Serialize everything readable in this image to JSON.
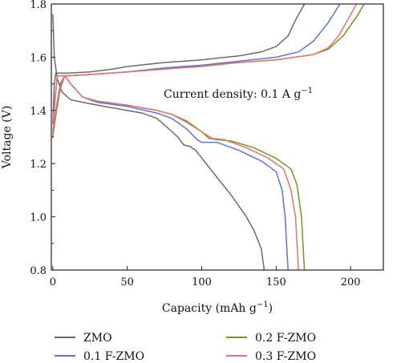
{
  "chart_data": {
    "type": "line",
    "title": "",
    "xlabel": "Capacity (mAh g",
    "xlabel_sup": "−1",
    "xlabel_tail": ")",
    "ylabel": "Voltage (V)",
    "xlim": [
      -1,
      222
    ],
    "ylim": [
      0.8,
      1.8
    ],
    "x_ticks": [
      "0",
      "50",
      "100",
      "150",
      "200"
    ],
    "y_ticks": [
      "0.8",
      "1.0",
      "1.2",
      "1.4",
      "1.6",
      "1.8"
    ],
    "annotation": {
      "text": "Current density: 0.1 A g",
      "sup": "−1"
    },
    "grid": false,
    "legend_position": "bottom",
    "series": [
      {
        "name": "ZMO",
        "color": "#6b6b6b",
        "discharge": [
          [
            0,
            1.76
          ],
          [
            1,
            1.6
          ],
          [
            3,
            1.52
          ],
          [
            6,
            1.47
          ],
          [
            12,
            1.44
          ],
          [
            25,
            1.425
          ],
          [
            40,
            1.41
          ],
          [
            60,
            1.39
          ],
          [
            70,
            1.37
          ],
          [
            78,
            1.33
          ],
          [
            84,
            1.3
          ],
          [
            88,
            1.27
          ],
          [
            92,
            1.265
          ],
          [
            96,
            1.25
          ],
          [
            110,
            1.15
          ],
          [
            120,
            1.08
          ],
          [
            130,
            1.0
          ],
          [
            135,
            0.95
          ],
          [
            140,
            0.88
          ],
          [
            142,
            0.8
          ]
        ],
        "charge": [
          [
            0,
            1.35
          ],
          [
            1,
            1.5
          ],
          [
            2,
            1.54
          ],
          [
            5,
            1.54
          ],
          [
            10,
            1.54
          ],
          [
            25,
            1.545
          ],
          [
            40,
            1.555
          ],
          [
            50,
            1.565
          ],
          [
            75,
            1.58
          ],
          [
            100,
            1.59
          ],
          [
            125,
            1.605
          ],
          [
            140,
            1.62
          ],
          [
            150,
            1.64
          ],
          [
            158,
            1.68
          ],
          [
            163,
            1.74
          ],
          [
            170,
            1.81
          ]
        ]
      },
      {
        "name": "0.2 F-ZMO",
        "color": "#6f9a1f",
        "discharge": [
          [
            0,
            1.3
          ],
          [
            2,
            1.38
          ],
          [
            5,
            1.48
          ],
          [
            8,
            1.53
          ],
          [
            12,
            1.5
          ],
          [
            20,
            1.45
          ],
          [
            30,
            1.435
          ],
          [
            50,
            1.42
          ],
          [
            70,
            1.4
          ],
          [
            80,
            1.385
          ],
          [
            90,
            1.36
          ],
          [
            100,
            1.32
          ],
          [
            105,
            1.295
          ],
          [
            110,
            1.29
          ],
          [
            120,
            1.285
          ],
          [
            135,
            1.26
          ],
          [
            150,
            1.22
          ],
          [
            160,
            1.18
          ],
          [
            164,
            1.12
          ],
          [
            167,
            1.0
          ],
          [
            168,
            0.9
          ],
          [
            169,
            0.8
          ]
        ],
        "charge": [
          [
            0,
            1.35
          ],
          [
            3,
            1.53
          ],
          [
            10,
            1.53
          ],
          [
            25,
            1.535
          ],
          [
            50,
            1.545
          ],
          [
            75,
            1.555
          ],
          [
            100,
            1.57
          ],
          [
            125,
            1.58
          ],
          [
            150,
            1.59
          ],
          [
            175,
            1.61
          ],
          [
            185,
            1.63
          ],
          [
            195,
            1.68
          ],
          [
            205,
            1.76
          ],
          [
            210,
            1.81
          ]
        ]
      },
      {
        "name": "0.1 F-ZMO",
        "color": "#5b72e6",
        "discharge": [
          [
            0,
            1.32
          ],
          [
            2,
            1.4
          ],
          [
            5,
            1.5
          ],
          [
            8,
            1.53
          ],
          [
            12,
            1.5
          ],
          [
            20,
            1.45
          ],
          [
            30,
            1.43
          ],
          [
            50,
            1.415
          ],
          [
            70,
            1.39
          ],
          [
            80,
            1.37
          ],
          [
            90,
            1.33
          ],
          [
            97,
            1.29
          ],
          [
            100,
            1.28
          ],
          [
            110,
            1.28
          ],
          [
            125,
            1.25
          ],
          [
            140,
            1.21
          ],
          [
            150,
            1.17
          ],
          [
            154,
            1.1
          ],
          [
            156,
            1.0
          ],
          [
            157,
            0.9
          ],
          [
            158,
            0.8
          ]
        ],
        "charge": [
          [
            0,
            1.35
          ],
          [
            3,
            1.53
          ],
          [
            10,
            1.53
          ],
          [
            25,
            1.535
          ],
          [
            50,
            1.545
          ],
          [
            75,
            1.56
          ],
          [
            100,
            1.57
          ],
          [
            125,
            1.585
          ],
          [
            150,
            1.6
          ],
          [
            165,
            1.62
          ],
          [
            175,
            1.66
          ],
          [
            185,
            1.73
          ],
          [
            194,
            1.81
          ]
        ]
      },
      {
        "name": "0.3 F-ZMO",
        "color": "#e8736c",
        "discharge": [
          [
            0,
            1.31
          ],
          [
            2,
            1.39
          ],
          [
            5,
            1.49
          ],
          [
            8,
            1.53
          ],
          [
            12,
            1.5
          ],
          [
            20,
            1.45
          ],
          [
            30,
            1.435
          ],
          [
            50,
            1.42
          ],
          [
            70,
            1.4
          ],
          [
            80,
            1.385
          ],
          [
            90,
            1.355
          ],
          [
            100,
            1.32
          ],
          [
            107,
            1.295
          ],
          [
            115,
            1.29
          ],
          [
            130,
            1.26
          ],
          [
            145,
            1.22
          ],
          [
            155,
            1.18
          ],
          [
            160,
            1.1
          ],
          [
            163,
            1.0
          ],
          [
            164,
            0.9
          ],
          [
            165,
            0.8
          ]
        ],
        "charge": [
          [
            0,
            1.35
          ],
          [
            3,
            1.53
          ],
          [
            10,
            1.53
          ],
          [
            25,
            1.535
          ],
          [
            50,
            1.545
          ],
          [
            75,
            1.555
          ],
          [
            100,
            1.565
          ],
          [
            125,
            1.58
          ],
          [
            150,
            1.59
          ],
          [
            175,
            1.61
          ],
          [
            185,
            1.635
          ],
          [
            192,
            1.68
          ],
          [
            200,
            1.76
          ],
          [
            205,
            1.81
          ]
        ]
      }
    ],
    "legend_order": [
      "ZMO",
      "0.2 F-ZMO",
      "0.1 F-ZMO",
      "0.3 F-ZMO"
    ]
  }
}
